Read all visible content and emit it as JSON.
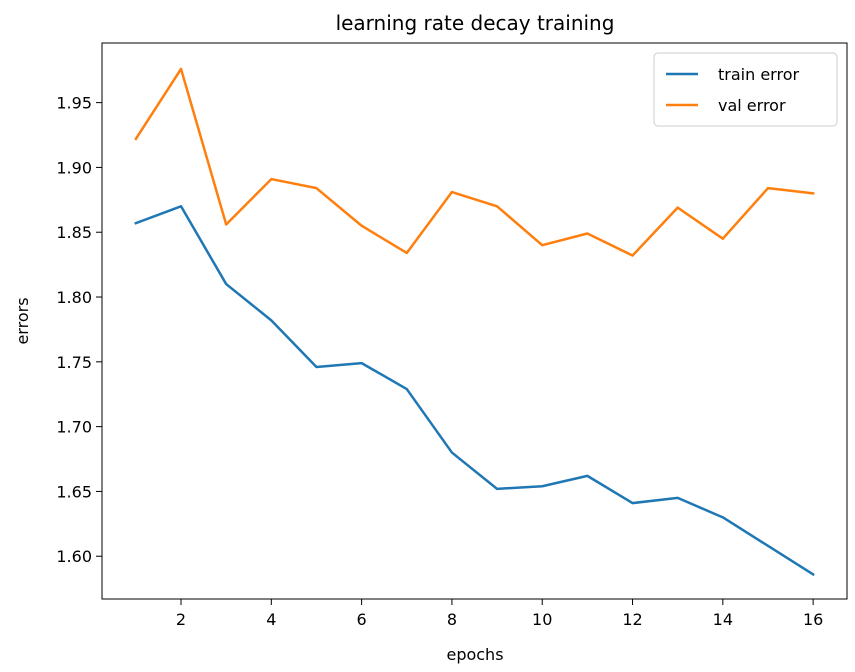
{
  "chart_data": {
    "type": "line",
    "title": "learning rate decay training",
    "xlabel": "epochs",
    "ylabel": "errors",
    "x": [
      1,
      2,
      3,
      4,
      5,
      6,
      7,
      8,
      9,
      10,
      11,
      12,
      13,
      14,
      15,
      16
    ],
    "xlim": [
      0.25,
      16.75
    ],
    "ylim": [
      1.567,
      1.996
    ],
    "xticks": [
      2,
      4,
      6,
      8,
      10,
      12,
      14,
      16
    ],
    "yticks": [
      1.6,
      1.65,
      1.7,
      1.75,
      1.8,
      1.85,
      1.9,
      1.95
    ],
    "ytick_labels": [
      "1.60",
      "1.65",
      "1.70",
      "1.75",
      "1.80",
      "1.85",
      "1.90",
      "1.95"
    ],
    "grid": false,
    "legend_position": "top-right",
    "series": [
      {
        "name": "train error",
        "color": "#1f77b4",
        "values": [
          1.857,
          1.87,
          1.81,
          1.782,
          1.746,
          1.749,
          1.729,
          1.68,
          1.652,
          1.654,
          1.662,
          1.641,
          1.645,
          1.63,
          1.608,
          1.586
        ]
      },
      {
        "name": "val error",
        "color": "#ff7f0e",
        "values": [
          1.922,
          1.976,
          1.856,
          1.891,
          1.884,
          1.855,
          1.834,
          1.881,
          1.87,
          1.84,
          1.849,
          1.832,
          1.869,
          1.845,
          1.884,
          1.88
        ]
      }
    ]
  }
}
